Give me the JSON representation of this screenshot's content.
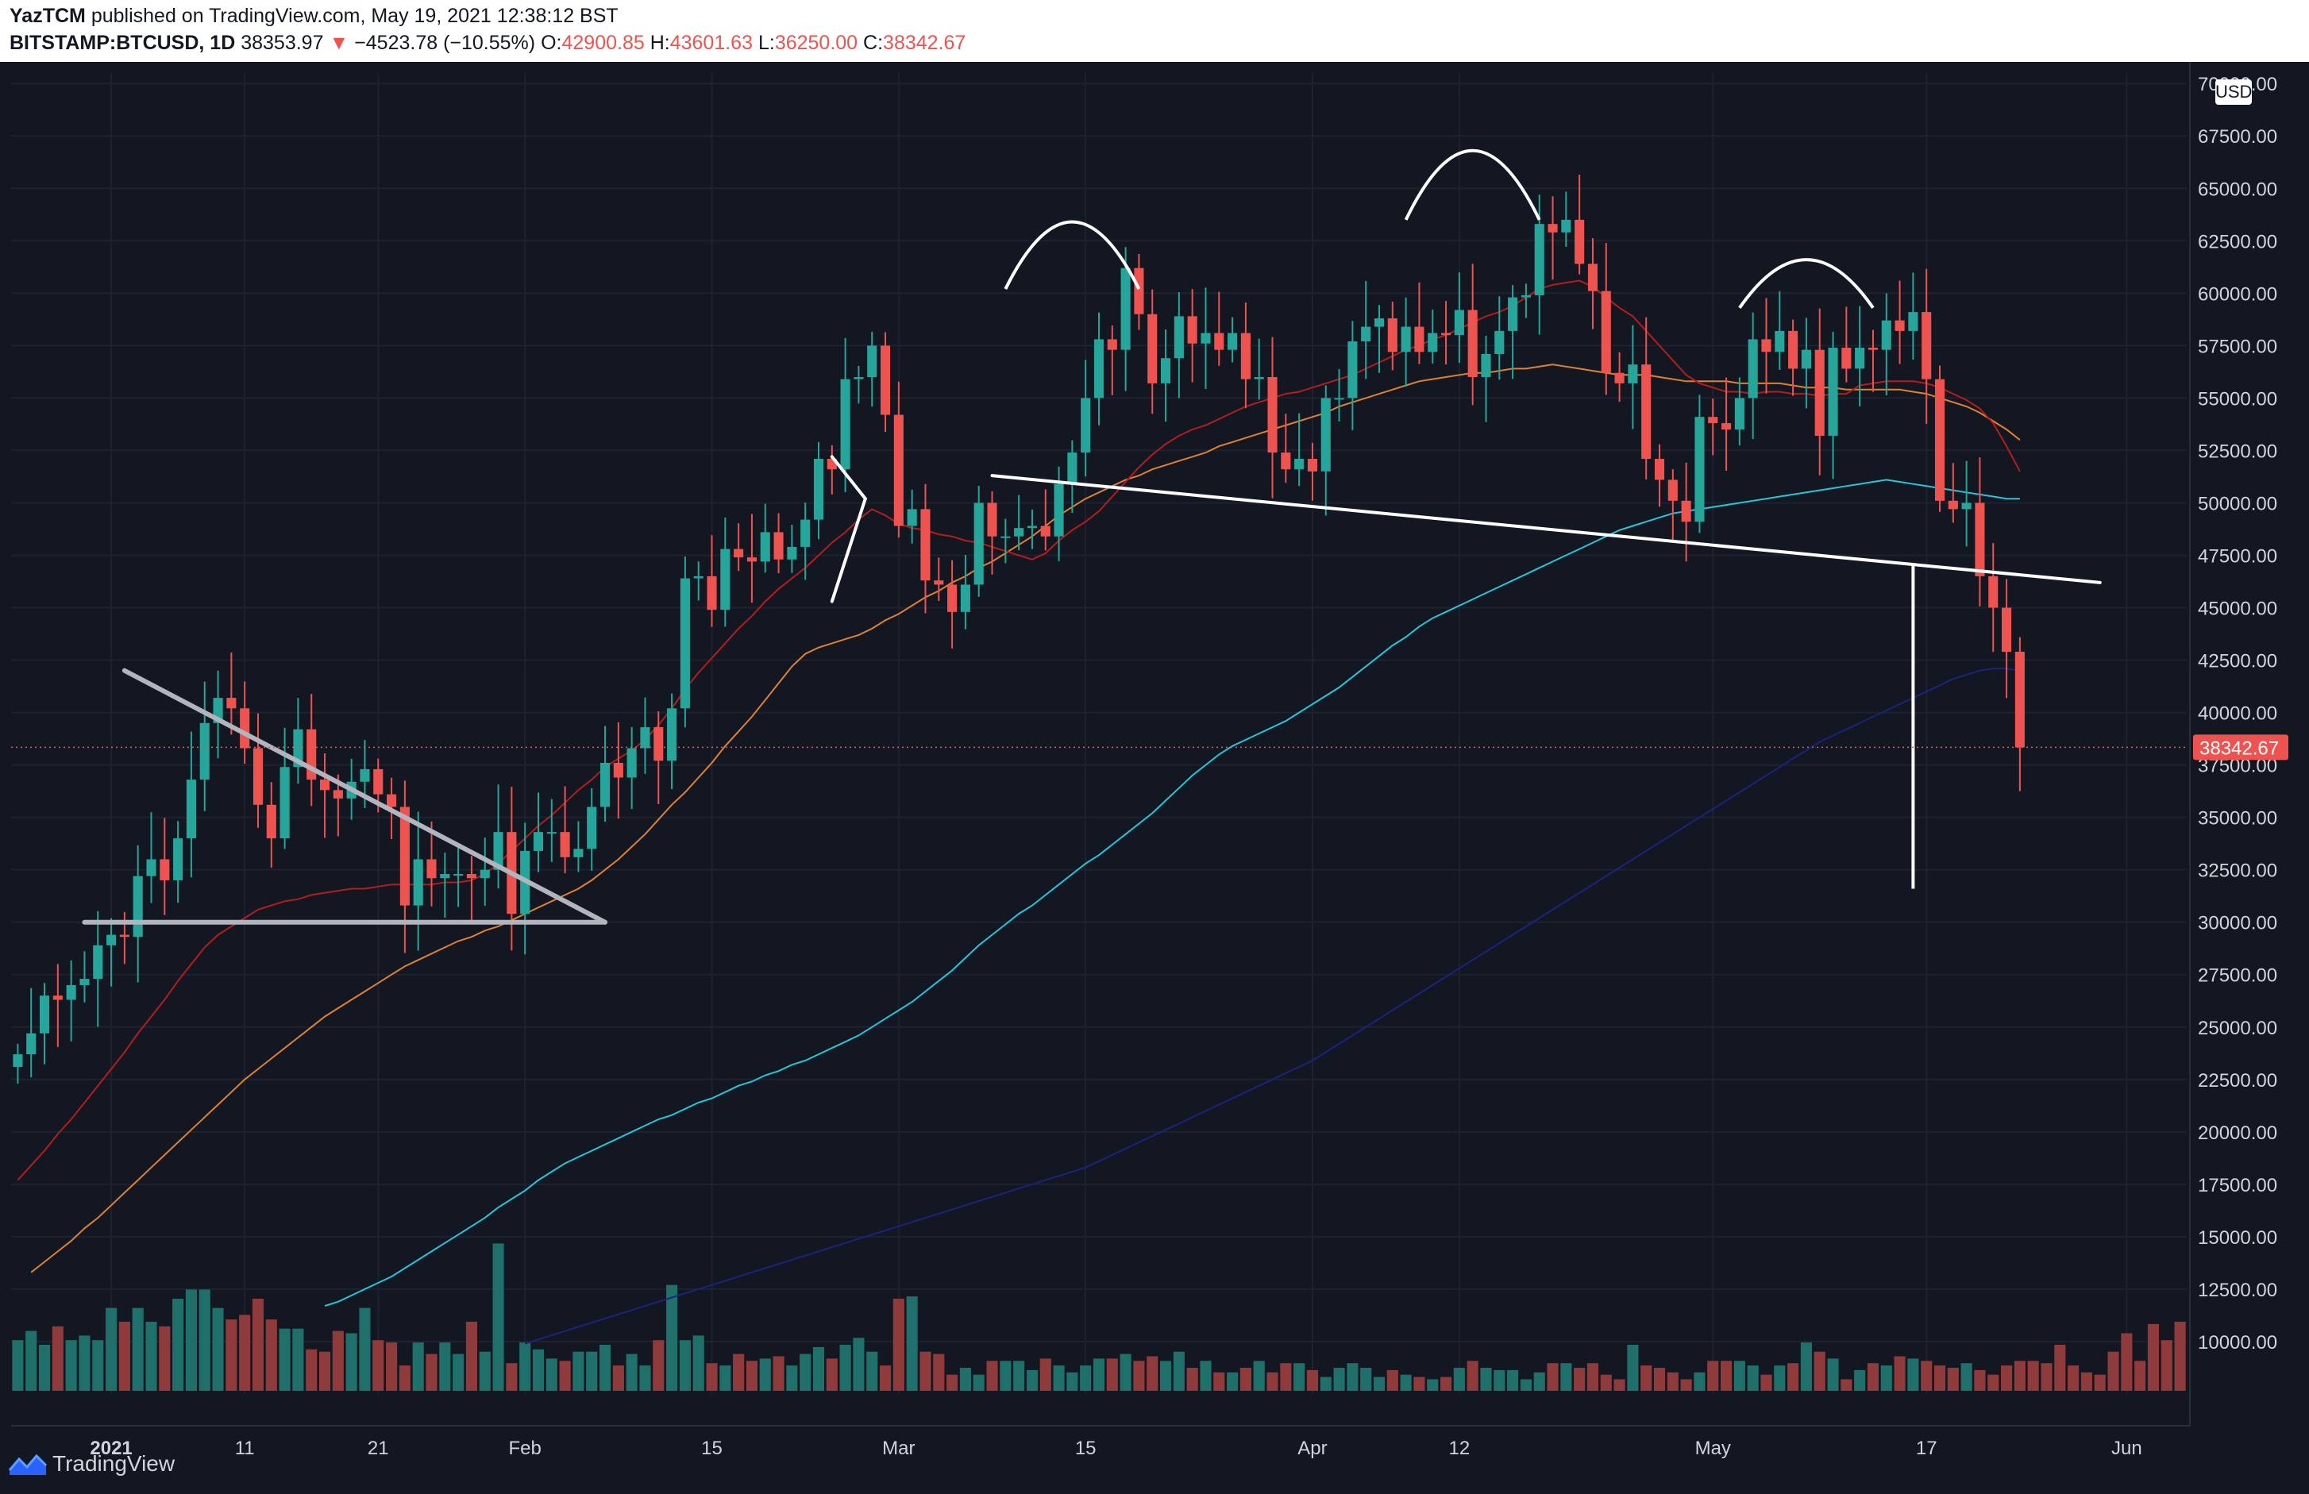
{
  "header": {
    "author": "YazTCM",
    "published_text": "published on TradingView.com, May 19, 2021 12:38:12 BST",
    "symbol": "BITSTAMP:BTCUSD, 1D",
    "last": "38353.97",
    "change": "−4523.78 (−10.55%)",
    "o_label": "O:",
    "o_value": "42900.85",
    "h_label": "H:",
    "h_value": "43601.63",
    "l_label": "L:",
    "l_value": "36250.00",
    "c_label": "C:",
    "c_value": "38342.67"
  },
  "currency_badge": "USD",
  "footer": {
    "brand": "TradingView"
  },
  "colors": {
    "up": "#26a69a",
    "down": "#ef5350",
    "vol_up": "#1f6f6a",
    "vol_down": "#8f3a3b",
    "ma20": "#b71c1c",
    "ma50": "#e08030",
    "ma100": "#26c6da",
    "ma200": "#1a237e",
    "background": "#131722",
    "annotation": "#ffffff",
    "triangle": "#b2b5be"
  },
  "chart_data": {
    "type": "candlestick",
    "title": "",
    "xlabel": "",
    "ylabel": "",
    "ylim": [
      7500,
      70500
    ],
    "price_ticks": [
      10000,
      12500,
      15000,
      17500,
      20000,
      22500,
      25000,
      27500,
      30000,
      32500,
      35000,
      37500,
      40000,
      42500,
      45000,
      47500,
      50000,
      52500,
      55000,
      57500,
      60000,
      62500,
      65000,
      67500,
      70000
    ],
    "price_tick_labels": [
      "10000.00",
      "12500.00",
      "15000.00",
      "17500.00",
      "20000.00",
      "22500.00",
      "25000.00",
      "27500.00",
      "30000.00",
      "32500.00",
      "35000.00",
      "37500.00",
      "40000.00",
      "42500.00",
      "45000.00",
      "47500.00",
      "50000.00",
      "52500.00",
      "55000.00",
      "57500.00",
      "60000.00",
      "62500.00",
      "65000.00",
      "67500.00",
      "70000.00"
    ],
    "time_ticks": [
      {
        "label": "2021",
        "day": 7
      },
      {
        "label": "11",
        "day": 17
      },
      {
        "label": "21",
        "day": 27
      },
      {
        "label": "Feb",
        "day": 38
      },
      {
        "label": "15",
        "day": 52
      },
      {
        "label": "Mar",
        "day": 66
      },
      {
        "label": "15",
        "day": 80
      },
      {
        "label": "Apr",
        "day": 97
      },
      {
        "label": "12",
        "day": 108
      },
      {
        "label": "May",
        "day": 127
      },
      {
        "label": "17",
        "day": 143
      },
      {
        "label": "Jun",
        "day": 158
      }
    ],
    "first_day": "2020-12-25",
    "x_range_days": [
      -0.5,
      162.5
    ],
    "last_price_label": "38342.67",
    "last_price": 38342.67,
    "closes": [
      23700,
      24700,
      26500,
      26300,
      27000,
      27300,
      28900,
      29400,
      29300,
      32200,
      33000,
      32000,
      34000,
      36800,
      39500,
      40700,
      40200,
      38300,
      35600,
      34000,
      37400,
      39200,
      36800,
      36300,
      35900,
      36700,
      37300,
      36100,
      35500,
      30800,
      33000,
      32100,
      32300,
      32300,
      32100,
      32500,
      34300,
      30400,
      33400,
      34300,
      34300,
      33100,
      33500,
      35500,
      37600,
      36900,
      38300,
      39300,
      37700,
      40200,
      46400,
      46500,
      44900,
      47800,
      47400,
      47200,
      48600,
      47300,
      47900,
      49200,
      52100,
      51600,
      55900,
      56000,
      57500,
      54200,
      48900,
      49700,
      46300,
      46100,
      44800,
      46100,
      50000,
      48400,
      48400,
      48800,
      48900,
      48400,
      50900,
      52400,
      55000,
      57800,
      57300,
      61200,
      59000,
      55700,
      56900,
      58900,
      57600,
      58100,
      57300,
      58100,
      55900,
      56000,
      52400,
      51600,
      52100,
      51500,
      55000,
      55000,
      57700,
      58400,
      58800,
      57200,
      58400,
      57200,
      58100,
      58000,
      59200,
      56000,
      57100,
      58200,
      59800,
      59900,
      63300,
      62900,
      63500,
      61400,
      60100,
      56200,
      55700,
      56600,
      52100,
      51100,
      50100,
      49100,
      54100,
      53800,
      53500,
      55000,
      57800,
      57200,
      58200,
      56400,
      57300,
      53200,
      57400,
      56400,
      57400,
      57300,
      58700,
      58200,
      59100,
      55900,
      50100,
      49700,
      50000,
      46500,
      45000,
      42900,
      38340
    ],
    "volume_ylim": [
      0,
      100
    ],
    "volumes": [
      22,
      26,
      20,
      28,
      22,
      24,
      22,
      36,
      30,
      36,
      30,
      28,
      40,
      44,
      44,
      36,
      31,
      33,
      40,
      31,
      27,
      27,
      18,
      17,
      26,
      25,
      36,
      22,
      21,
      11,
      21,
      16,
      21,
      16,
      30,
      17,
      64,
      12,
      21,
      18,
      14,
      13,
      17,
      17,
      20,
      11,
      16,
      11,
      22,
      46,
      22,
      24,
      12,
      11,
      16,
      13,
      14,
      15,
      11,
      16,
      19,
      14,
      20,
      23,
      17,
      11,
      40,
      41,
      17,
      16,
      7,
      10,
      7,
      13,
      13,
      13,
      9,
      14,
      11,
      8,
      11,
      14,
      14,
      16,
      13,
      15,
      13,
      17,
      10,
      13,
      8,
      8,
      10,
      13,
      8,
      12,
      12,
      9,
      6,
      10,
      12,
      10,
      6,
      9,
      7,
      6,
      5,
      6,
      10,
      13,
      10,
      9,
      9,
      5,
      8,
      12,
      12,
      10,
      12,
      7,
      5,
      20,
      11,
      10,
      8,
      5,
      8,
      13,
      13,
      13,
      11,
      7,
      11,
      12,
      21,
      17,
      14,
      5,
      9,
      12,
      11,
      15,
      14,
      13,
      11,
      10,
      12,
      9,
      7,
      11,
      13,
      13,
      12,
      20,
      11,
      8,
      7,
      17,
      25,
      13,
      29,
      22,
      30
    ],
    "ma20": [
      17700,
      18400,
      19100,
      19900,
      20600,
      21400,
      22200,
      23000,
      23800,
      24700,
      25500,
      26300,
      27200,
      28000,
      28800,
      29400,
      29800,
      30200,
      30600,
      30800,
      31000,
      31100,
      31300,
      31400,
      31500,
      31600,
      31600,
      31700,
      31800,
      31800,
      31800,
      31800,
      31900,
      31900,
      32000,
      32300,
      32800,
      33400,
      34000,
      34600,
      35100,
      35700,
      36300,
      36800,
      37400,
      37800,
      38200,
      38700,
      39400,
      40200,
      41100,
      41900,
      42600,
      43300,
      44000,
      44600,
      45300,
      45900,
      46400,
      46900,
      47500,
      48100,
      48600,
      49200,
      49700,
      49400,
      49000,
      48800,
      48700,
      48500,
      48400,
      48200,
      48100,
      47900,
      47700,
      47500,
      47300,
      47600,
      48200,
      48700,
      49100,
      49600,
      50300,
      51000,
      51700,
      52300,
      52800,
      53200,
      53500,
      53700,
      54000,
      54300,
      54600,
      54800,
      55000,
      55200,
      55300,
      55500,
      55700,
      55900,
      56100,
      56400,
      56700,
      57000,
      57300,
      57500,
      57800,
      58000,
      58300,
      58600,
      58900,
      59100,
      59400,
      59800,
      60200,
      60400,
      60500,
      60600,
      60300,
      59800,
      59300,
      58900,
      58200,
      57500,
      56800,
      56100,
      55700,
      55500,
      55300,
      55300,
      55200,
      55300,
      55300,
      55200,
      55200,
      55100,
      55200,
      55200,
      55600,
      55700,
      55800,
      55800,
      55800,
      55700,
      55500,
      55200,
      54900,
      54500,
      53800,
      52700,
      51500
    ],
    "ma50": [
      13300,
      13800,
      14300,
      14800,
      15400,
      15900,
      16500,
      17100,
      17700,
      18300,
      18900,
      19500,
      20100,
      20700,
      21300,
      21900,
      22500,
      23000,
      23500,
      24000,
      24500,
      25000,
      25500,
      25900,
      26300,
      26700,
      27100,
      27500,
      27900,
      28200,
      28500,
      28800,
      29100,
      29300,
      29600,
      29800,
      30100,
      30400,
      30700,
      31000,
      31300,
      31600,
      32000,
      32500,
      33000,
      33600,
      34200,
      34900,
      35600,
      36200,
      36900,
      37600,
      38400,
      39100,
      39800,
      40600,
      41400,
      42200,
      42800,
      43100,
      43300,
      43500,
      43700,
      44000,
      44400,
      44700,
      45100,
      45500,
      45800,
      46200,
      46500,
      46900,
      47200,
      47600,
      48000,
      48400,
      48900,
      49400,
      49800,
      50200,
      50500,
      50800,
      51100,
      51300,
      51600,
      51800,
      52000,
      52200,
      52400,
      52700,
      52900,
      53100,
      53300,
      53500,
      53700,
      53900,
      54100,
      54300,
      54600,
      54800,
      55000,
      55200,
      55400,
      55600,
      55800,
      55900,
      56000,
      56100,
      56200,
      56200,
      56300,
      56400,
      56400,
      56500,
      56600,
      56500,
      56400,
      56300,
      56200,
      56100,
      56100,
      56100,
      56000,
      55900,
      55800,
      55800,
      55800,
      55800,
      55700,
      55700,
      55700,
      55700,
      55600,
      55500,
      55500,
      55500,
      55400,
      55400,
      55400,
      55400,
      55400,
      55300,
      55200,
      55000,
      54800,
      54600,
      54300,
      53900,
      53500,
      53000
    ],
    "ma100": [
      11700,
      11900,
      12200,
      12500,
      12800,
      13100,
      13500,
      13900,
      14300,
      14700,
      15100,
      15500,
      15900,
      16400,
      16800,
      17200,
      17700,
      18100,
      18500,
      18800,
      19100,
      19400,
      19700,
      20000,
      20300,
      20600,
      20800,
      21100,
      21400,
      21600,
      21900,
      22200,
      22400,
      22700,
      22900,
      23200,
      23400,
      23700,
      24000,
      24300,
      24600,
      25000,
      25400,
      25800,
      26200,
      26700,
      27200,
      27700,
      28300,
      28900,
      29400,
      29900,
      30400,
      30800,
      31300,
      31800,
      32300,
      32800,
      33200,
      33700,
      34200,
      34700,
      35200,
      35800,
      36400,
      37000,
      37500,
      38000,
      38400,
      38700,
      39000,
      39300,
      39600,
      40000,
      40400,
      40800,
      41200,
      41700,
      42200,
      42700,
      43200,
      43600,
      44100,
      44500,
      44800,
      45100,
      45400,
      45700,
      46000,
      46300,
      46600,
      46900,
      47200,
      47500,
      47800,
      48100,
      48400,
      48700,
      48900,
      49100,
      49300,
      49500,
      49600,
      49700,
      49800,
      49900,
      50000,
      50100,
      50200,
      50300,
      50400,
      50500,
      50600,
      50700,
      50800,
      50900,
      51000,
      51100,
      51000,
      50900,
      50800,
      50700,
      50600,
      50500,
      50400,
      50300,
      50200,
      50200
    ],
    "ma200": [
      9900,
      10100,
      10300,
      10500,
      10700,
      10900,
      11100,
      11300,
      11500,
      11700,
      11900,
      12100,
      12300,
      12500,
      12700,
      12900,
      13100,
      13300,
      13500,
      13700,
      13900,
      14100,
      14300,
      14500,
      14700,
      14900,
      15100,
      15300,
      15500,
      15700,
      15900,
      16100,
      16300,
      16500,
      16700,
      16900,
      17100,
      17300,
      17500,
      17700,
      17900,
      18100,
      18300,
      18600,
      18900,
      19200,
      19500,
      19800,
      20100,
      20400,
      20700,
      21000,
      21300,
      21600,
      21900,
      22200,
      22500,
      22800,
      23100,
      23400,
      23800,
      24200,
      24600,
      25000,
      25400,
      25800,
      26200,
      26600,
      27000,
      27400,
      27800,
      28200,
      28600,
      29000,
      29400,
      29800,
      30200,
      30600,
      31000,
      31400,
      31800,
      32200,
      32600,
      33000,
      33400,
      33800,
      34200,
      34600,
      35000,
      35400,
      35800,
      36200,
      36600,
      37000,
      37400,
      37800,
      38200,
      38600,
      38900,
      39200,
      39500,
      39800,
      40100,
      40400,
      40700,
      41000,
      41300,
      41600,
      41800,
      42000,
      42100,
      42100,
      42000
    ],
    "annotations": {
      "neckline": {
        "from_day": 73,
        "from_price": 51300,
        "to_day": 156,
        "to_price": 46200
      },
      "triangle_upper": {
        "from_day": 8,
        "from_price": 42000,
        "to_day": 44,
        "to_price": 30000
      },
      "triangle_lower": {
        "from_day": 5,
        "from_price": 30000,
        "to_day": 44,
        "to_price": 30000
      },
      "arcs": [
        {
          "from_day": 74,
          "to_day": 84,
          "peak_price": 63400,
          "base_price": 60200
        },
        {
          "from_day": 104,
          "to_day": 114,
          "peak_price": 66800,
          "base_price": 63500
        },
        {
          "from_day": 129,
          "to_day": 139,
          "peak_price": 61600,
          "base_price": 59300
        }
      ],
      "small_lines": [
        {
          "from_day": 61,
          "from_price": 52200,
          "to_day": 63.5,
          "to_price": 50200
        },
        {
          "from_day": 61,
          "from_price": 45300,
          "to_day": 63.5,
          "to_price": 50200
        }
      ],
      "measured_move": {
        "day": 142,
        "from_price": 47000,
        "to_price": 31600
      }
    }
  }
}
